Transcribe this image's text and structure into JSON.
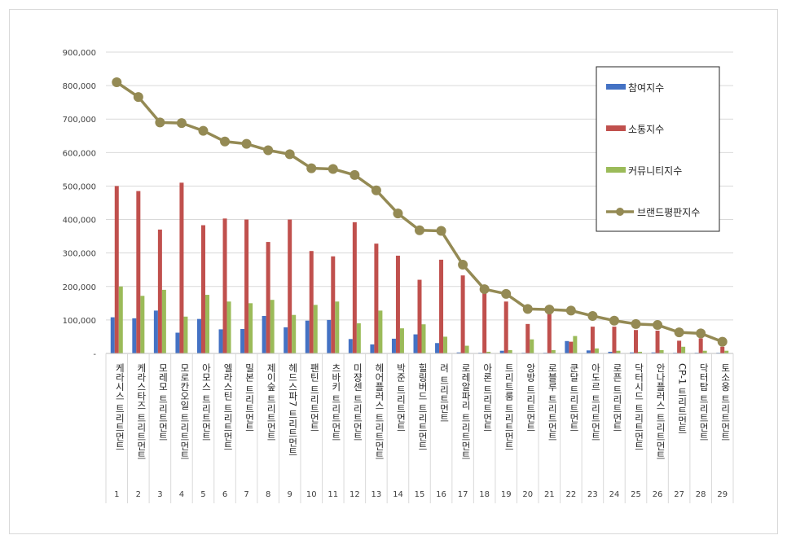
{
  "chart_data": {
    "type": "bar",
    "categories": [
      "케라시스 트리트먼트",
      "케라스타즈 트리트먼트",
      "모레모 트리트먼트",
      "모로칸오일 트리트먼트",
      "아모스 트리트먼트",
      "엘라스틴 트리트먼트",
      "밀본 트리트먼트",
      "제이숲 트리트먼트",
      "헤드스파7 트리트먼트",
      "팬틴 트리트먼트",
      "츠바키 트리트먼트",
      "미쟝센 트리트먼트",
      "헤어플러스 트리트먼트",
      "박준 트리트먼트",
      "힐링버드 트리트먼트",
      "려 트리트먼트",
      "로레알파리 트리트먼트",
      "아론 트리트먼트",
      "트리트룸 트리트먼트",
      "앙방 트리트먼트",
      "로블루 트리트먼트",
      "쿤달 트리트먼트",
      "아도르 트리트먼트",
      "로픈 트리트먼트",
      "닥터시드 트리트먼트",
      "안나플러스 트리트먼트",
      "CP-1 트리트먼트",
      "닥터탑 트리트먼트",
      "토소웅 트리트먼트"
    ],
    "ranks": [
      "1",
      "2",
      "3",
      "4",
      "5",
      "6",
      "7",
      "8",
      "9",
      "10",
      "11",
      "12",
      "13",
      "14",
      "15",
      "16",
      "17",
      "18",
      "19",
      "20",
      "21",
      "22",
      "23",
      "24",
      "25",
      "26",
      "27",
      "28",
      "29"
    ],
    "series": [
      {
        "name": "참여지수",
        "kind": "bar",
        "color": "#4472C4",
        "values": [
          108000,
          105000,
          128000,
          62000,
          103000,
          72000,
          73000,
          112000,
          78000,
          98000,
          100000,
          43000,
          27000,
          44000,
          57000,
          31000,
          3000,
          2000,
          8000,
          2000,
          2000,
          37000,
          9000,
          5000,
          3000,
          3000,
          2000,
          2000,
          2000
        ]
      },
      {
        "name": "소통지수",
        "kind": "bar",
        "color": "#C0504D",
        "values": [
          500000,
          485000,
          370000,
          510000,
          383000,
          403000,
          400000,
          333000,
          400000,
          306000,
          290000,
          392000,
          328000,
          292000,
          220000,
          280000,
          233000,
          180000,
          155000,
          88000,
          125000,
          35000,
          80000,
          80000,
          70000,
          68000,
          38000,
          45000,
          20000
        ]
      },
      {
        "name": "커뮤니티지수",
        "kind": "bar",
        "color": "#9BBB59",
        "values": [
          200000,
          172000,
          190000,
          110000,
          175000,
          155000,
          150000,
          160000,
          115000,
          145000,
          155000,
          90000,
          128000,
          75000,
          87000,
          50000,
          23000,
          5000,
          10000,
          42000,
          10000,
          52000,
          15000,
          8000,
          5000,
          10000,
          20000,
          8000,
          8000
        ]
      },
      {
        "name": "브랜드평판지수",
        "kind": "line",
        "color": "#948A54",
        "values": [
          810000,
          766000,
          690000,
          688000,
          665000,
          633000,
          626000,
          607000,
          595000,
          553000,
          551000,
          533000,
          487000,
          418000,
          368000,
          366000,
          265000,
          192000,
          178000,
          133000,
          131000,
          128000,
          112000,
          98000,
          88000,
          85000,
          63000,
          60000,
          35000
        ]
      }
    ],
    "ylim": [
      0,
      900000
    ],
    "yticks": [
      "-",
      "100,000",
      "200,000",
      "300,000",
      "400,000",
      "500,000",
      "600,000",
      "700,000",
      "800,000",
      "900,000"
    ],
    "legend_position": "top-right",
    "grid": true
  }
}
